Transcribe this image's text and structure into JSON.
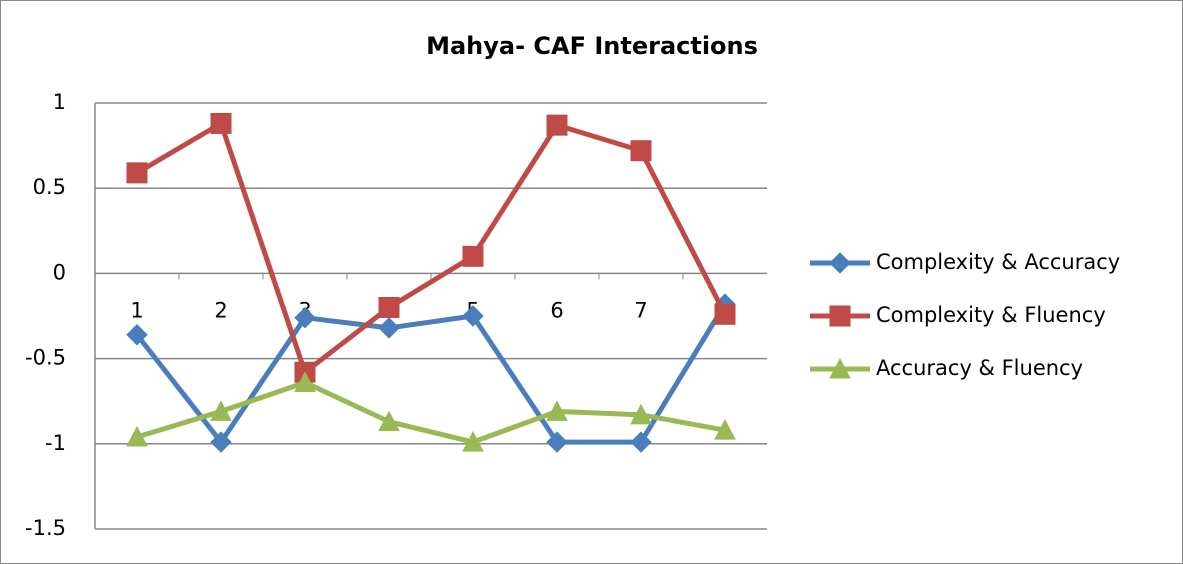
{
  "chart_data": {
    "type": "line",
    "title": "Mahya- CAF Interactions",
    "categories": [
      "1",
      "2",
      "3",
      "4",
      "5",
      "6",
      "7",
      "8"
    ],
    "series": [
      {
        "name": "Complexity & Accuracy",
        "color": "#4a7ebb",
        "marker": "diamond",
        "values": [
          -0.36,
          -0.99,
          -0.26,
          -0.32,
          -0.25,
          -0.99,
          -0.99,
          -0.18
        ]
      },
      {
        "name": "Complexity & Fluency",
        "color": "#be4b48",
        "marker": "square",
        "values": [
          0.59,
          0.88,
          -0.58,
          -0.2,
          0.1,
          0.87,
          0.72,
          -0.24
        ]
      },
      {
        "name": "Accuracy & Fluency",
        "color": "#98b954",
        "marker": "triangle",
        "values": [
          -0.96,
          -0.81,
          -0.64,
          -0.87,
          -0.99,
          -0.81,
          -0.83,
          -0.92
        ]
      }
    ],
    "ylim": [
      -1.5,
      1
    ],
    "yticks": [
      -1.5,
      -1,
      -0.5,
      0,
      0.5,
      1
    ],
    "grid": true,
    "legend": "right"
  }
}
